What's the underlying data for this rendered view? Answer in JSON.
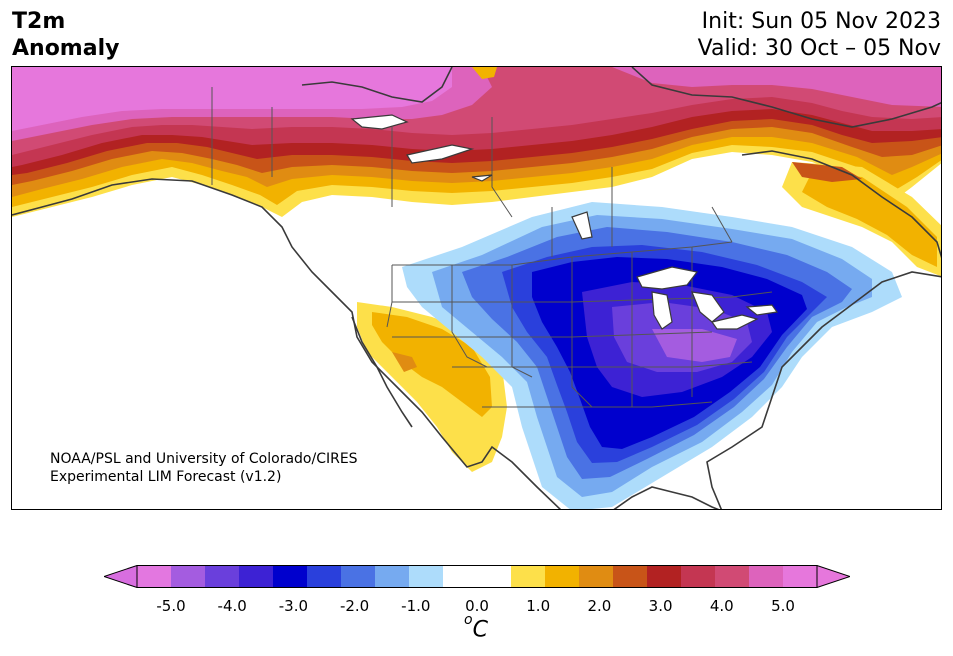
{
  "header": {
    "title_line1": "T2m",
    "title_line2": "Anomaly",
    "init": "Init: Sun 05 Nov 2023",
    "valid": "Valid: 30 Oct – 05 Nov"
  },
  "credit": {
    "line1": "NOAA/PSL and University of Colorado/CIRES",
    "line2": "Experimental LIM Forecast (v1.2)"
  },
  "colorbar": {
    "unit_prefix": "o",
    "unit_main": "C",
    "ticks": [
      "-5.0",
      "-4.0",
      "-3.0",
      "-2.0",
      "-1.0",
      "0.0",
      "1.0",
      "2.0",
      "3.0",
      "4.0",
      "5.0"
    ],
    "colors": [
      "#e377e0",
      "#a45ce0",
      "#6a3fdc",
      "#3d22d4",
      "#0000cd",
      "#2a40dc",
      "#4a72e4",
      "#76aaf0",
      "#addcfb",
      "#ffffff",
      "#ffffff",
      "#fde04a",
      "#f2b200",
      "#e08c12",
      "#c85418",
      "#b22222",
      "#c43652",
      "#d14a74",
      "#dd63bc",
      "#e677dc"
    ],
    "under_color": "#d86ee0",
    "over_color": "#e677dc"
  },
  "map": {
    "region": "North America",
    "variable": "2 m temperature anomaly"
  }
}
